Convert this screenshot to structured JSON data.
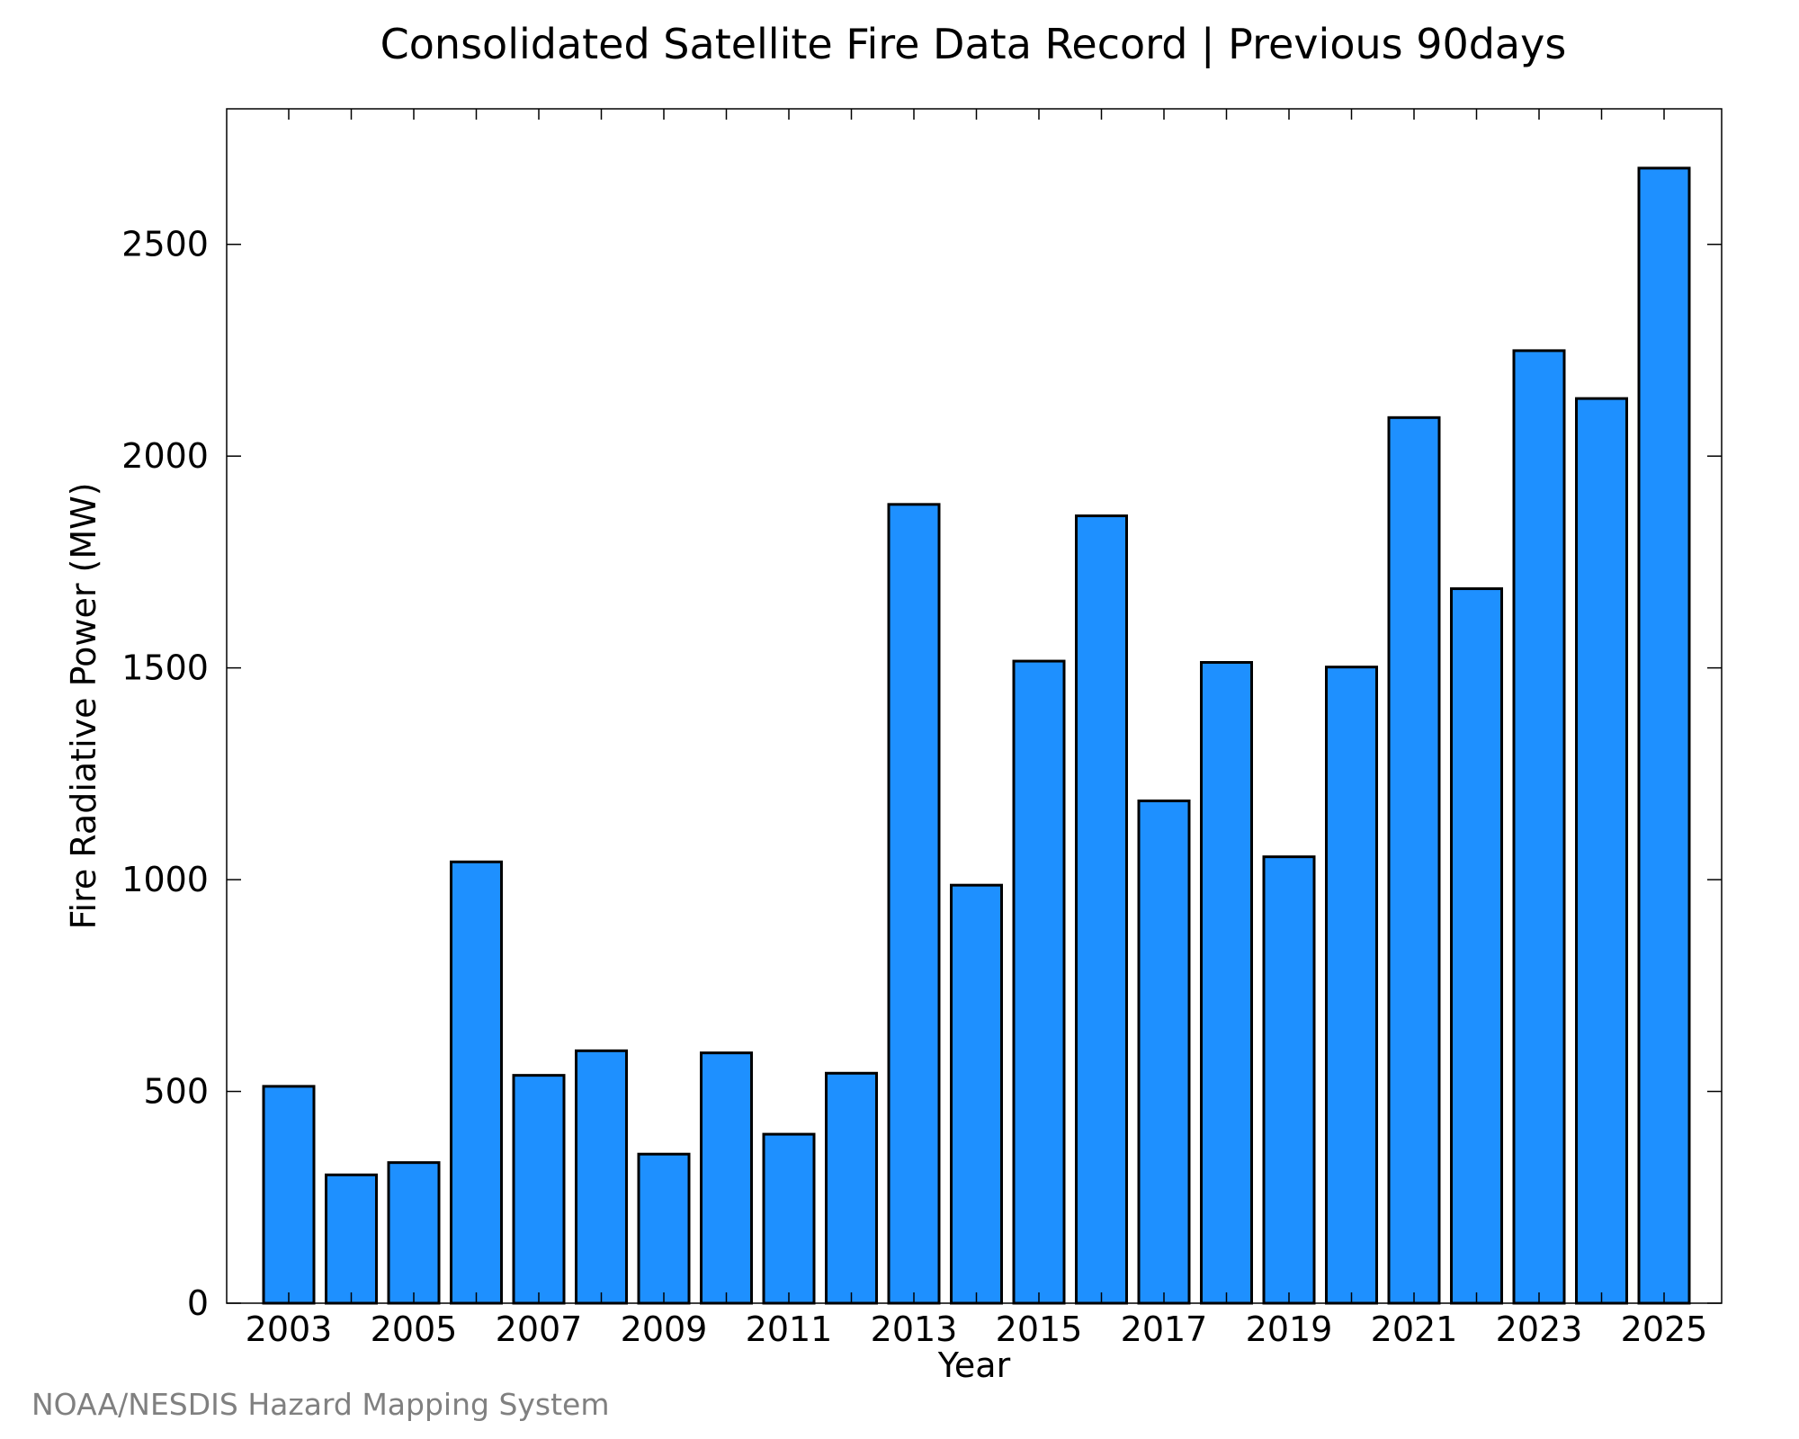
{
  "chart_data": {
    "type": "bar",
    "title": "Consolidated Satellite Fire Data Record | Previous 90days",
    "xlabel": "Year",
    "ylabel": "Fire Radiative Power (MW)",
    "categories": [
      "2003",
      "2004",
      "2005",
      "2006",
      "2007",
      "2008",
      "2009",
      "2010",
      "2011",
      "2012",
      "2013",
      "2014",
      "2015",
      "2016",
      "2017",
      "2018",
      "2019",
      "2020",
      "2021",
      "2022",
      "2023",
      "2024",
      "2025"
    ],
    "values": [
      512,
      303,
      332,
      1042,
      538,
      596,
      352,
      591,
      399,
      543,
      1886,
      987,
      1516,
      1859,
      1186,
      1513,
      1054,
      1502,
      2091,
      1687,
      2249,
      2136,
      2680
    ],
    "x_tick_labels": [
      "2003",
      "2005",
      "2007",
      "2009",
      "2011",
      "2013",
      "2015",
      "2017",
      "2019",
      "2021",
      "2023",
      "2025"
    ],
    "ylim": [
      0,
      2820
    ],
    "yticks": [
      0,
      500,
      1000,
      1500,
      2000,
      2500
    ],
    "grid": false,
    "legend": "none",
    "bar_color": "#1e90ff",
    "bar_edge_color": "#000000"
  },
  "footer": {
    "source": "NOAA/NESDIS Hazard Mapping System"
  }
}
